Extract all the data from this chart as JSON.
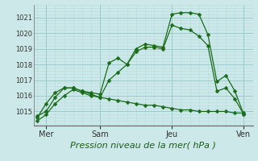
{
  "background_color": "#cce8e8",
  "grid_major_color": "#99cccc",
  "grid_minor_color": "#b8dddd",
  "line_color": "#1a6b1a",
  "title": "Pression niveau de la mer( hPa )",
  "ylabel_ticks": [
    1015,
    1016,
    1017,
    1018,
    1019,
    1020,
    1021
  ],
  "ylim": [
    1014.1,
    1021.8
  ],
  "xlim": [
    -0.2,
    12.0
  ],
  "x_tick_positions": [
    0.5,
    3.5,
    7.5,
    11.5
  ],
  "x_tick_labels": [
    "Mer",
    "Sam",
    "Jeu",
    "Ven"
  ],
  "x_vlines": [
    0.5,
    3.5,
    7.5,
    11.5
  ],
  "series": [
    {
      "x": [
        0,
        0.5,
        1.0,
        1.5,
        2.0,
        2.5,
        3.0,
        3.5,
        4.0,
        4.5,
        5.0,
        5.5,
        6.0,
        6.5,
        7.0,
        7.5,
        8.0,
        8.5,
        9.0,
        9.5,
        10.0,
        10.5,
        11.0,
        11.5
      ],
      "y": [
        1014.7,
        1015.0,
        1015.9,
        1016.5,
        1016.5,
        1016.3,
        1016.2,
        1016.1,
        1018.1,
        1018.4,
        1018.0,
        1019.0,
        1019.3,
        1019.2,
        1019.1,
        1021.2,
        1021.3,
        1021.3,
        1021.2,
        1019.9,
        1016.9,
        1017.3,
        1016.3,
        1014.8
      ]
    },
    {
      "x": [
        0,
        0.5,
        1.0,
        1.5,
        2.0,
        2.5,
        3.0,
        3.5,
        4.0,
        4.5,
        5.0,
        5.5,
        6.0,
        6.5,
        7.0,
        7.5,
        8.0,
        8.5,
        9.0,
        9.5,
        10.0,
        10.5,
        11.0,
        11.5
      ],
      "y": [
        1014.4,
        1014.8,
        1015.5,
        1016.0,
        1016.4,
        1016.2,
        1016.0,
        1015.9,
        1017.0,
        1017.5,
        1018.0,
        1018.8,
        1019.1,
        1019.1,
        1019.0,
        1020.5,
        1020.3,
        1020.2,
        1019.8,
        1019.2,
        1016.3,
        1016.5,
        1015.8,
        1014.8
      ]
    },
    {
      "x": [
        0,
        0.5,
        1.0,
        1.5,
        2.0,
        2.5,
        3.0,
        3.5,
        4.0,
        4.5,
        5.0,
        5.5,
        6.0,
        6.5,
        7.0,
        7.5,
        8.0,
        8.5,
        9.0,
        9.5,
        10.0,
        10.5,
        11.0,
        11.5
      ],
      "y": [
        1014.6,
        1015.5,
        1016.2,
        1016.5,
        1016.5,
        1016.3,
        1016.1,
        1015.9,
        1015.8,
        1015.7,
        1015.6,
        1015.5,
        1015.4,
        1015.4,
        1015.3,
        1015.2,
        1015.1,
        1015.1,
        1015.0,
        1015.0,
        1015.0,
        1015.0,
        1014.9,
        1014.9
      ]
    }
  ],
  "title_fontsize": 8,
  "tick_fontsize": 6,
  "xlabel_fontsize": 8
}
